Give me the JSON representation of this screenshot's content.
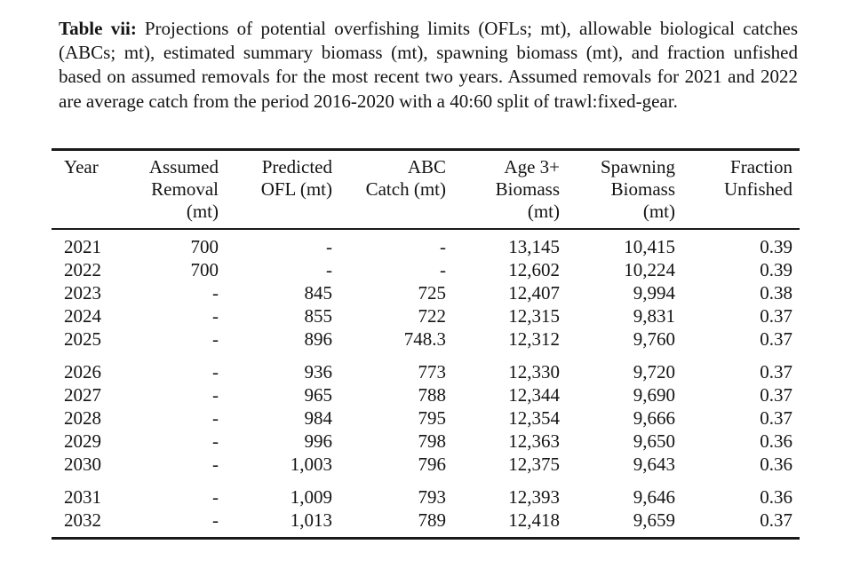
{
  "caption": {
    "label": "Table vii:",
    "text": "Projections of potential overfishing limits (OFLs; mt), allowable biological catches (ABCs; mt), estimated summary biomass (mt), spawning biomass (mt), and fraction unfished based on assumed removals for the most recent two years. Assumed removals for 2021 and 2022 are average catch from the period 2016-2020 with a 40:60 split of trawl:fixed-gear."
  },
  "table": {
    "columns": [
      {
        "lines": [
          "Year"
        ]
      },
      {
        "lines": [
          "Assumed",
          "Removal",
          "(mt)"
        ]
      },
      {
        "lines": [
          "Predicted",
          "OFL (mt)"
        ]
      },
      {
        "lines": [
          "ABC",
          "Catch (mt)"
        ]
      },
      {
        "lines": [
          "Age 3+",
          "Biomass",
          "(mt)"
        ]
      },
      {
        "lines": [
          "Spawning",
          "Biomass",
          "(mt)"
        ]
      },
      {
        "lines": [
          "Fraction",
          "Unfished"
        ]
      }
    ],
    "rows": [
      {
        "cells": [
          "2021",
          "700",
          "-",
          "-",
          "13,145",
          "10,415",
          "0.39"
        ]
      },
      {
        "cells": [
          "2022",
          "700",
          "-",
          "-",
          "12,602",
          "10,224",
          "0.39"
        ]
      },
      {
        "cells": [
          "2023",
          "-",
          "845",
          "725",
          "12,407",
          "9,994",
          "0.38"
        ]
      },
      {
        "cells": [
          "2024",
          "-",
          "855",
          "722",
          "12,315",
          "9,831",
          "0.37"
        ]
      },
      {
        "cells": [
          "2025",
          "-",
          "896",
          "748.3",
          "12,312",
          "9,760",
          "0.37"
        ]
      },
      {
        "cells": [
          "2026",
          "-",
          "936",
          "773",
          "12,330",
          "9,720",
          "0.37"
        ]
      },
      {
        "cells": [
          "2027",
          "-",
          "965",
          "788",
          "12,344",
          "9,690",
          "0.37"
        ]
      },
      {
        "cells": [
          "2028",
          "-",
          "984",
          "795",
          "12,354",
          "9,666",
          "0.37"
        ]
      },
      {
        "cells": [
          "2029",
          "-",
          "996",
          "798",
          "12,363",
          "9,650",
          "0.36"
        ]
      },
      {
        "cells": [
          "2030",
          "-",
          "1,003",
          "796",
          "12,375",
          "9,643",
          "0.36"
        ]
      },
      {
        "cells": [
          "2031",
          "-",
          "1,009",
          "793",
          "12,393",
          "9,646",
          "0.36"
        ]
      },
      {
        "cells": [
          "2032",
          "-",
          "1,013",
          "789",
          "12,418",
          "9,659",
          "0.37"
        ]
      }
    ]
  }
}
